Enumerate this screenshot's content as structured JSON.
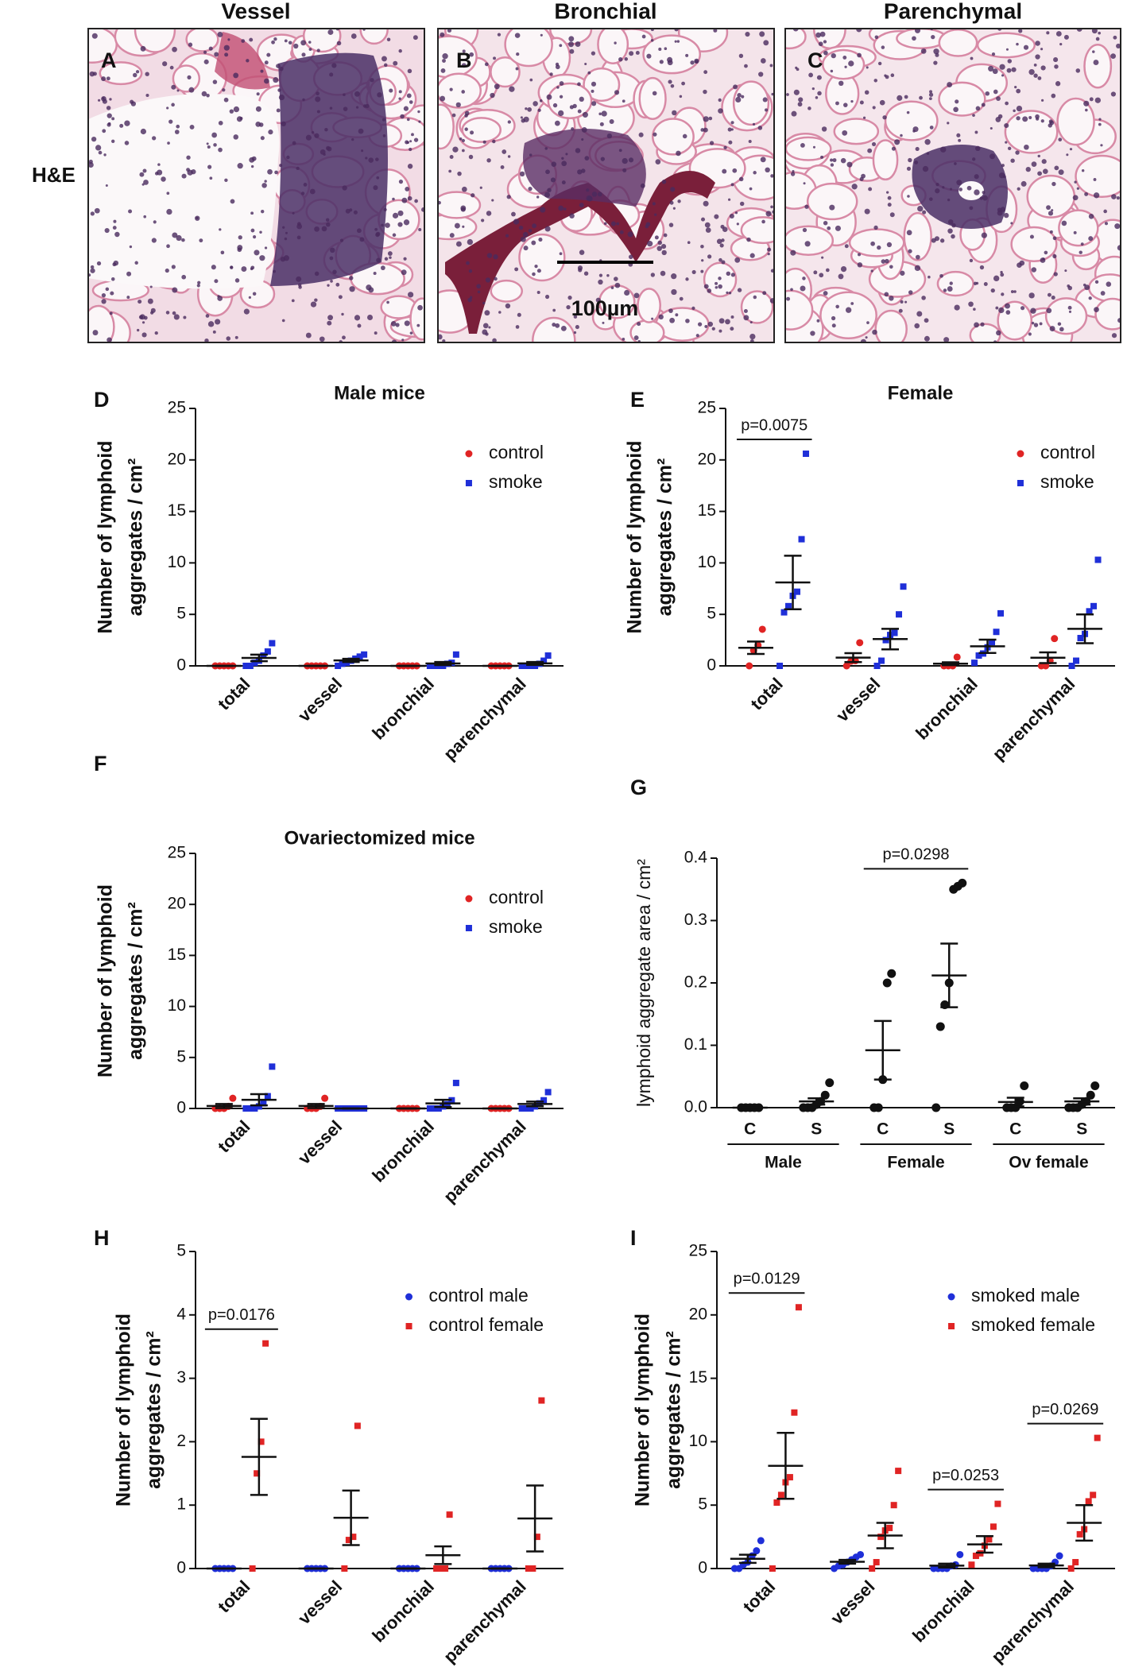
{
  "images": {
    "row_label": "H&E",
    "scale_bar": "100µm",
    "panels": [
      {
        "label": "A",
        "title": "Vessel"
      },
      {
        "label": "B",
        "title": "Bronchial"
      },
      {
        "label": "C",
        "title": "Parenchymal"
      }
    ]
  },
  "chart_data": [
    {
      "type": "strip",
      "label": "D",
      "title": "Male mice",
      "ylabel": [
        "Number of lymphoid",
        "aggregates / cm²"
      ],
      "categories": [
        "total",
        "vessel",
        "bronchial",
        "parenchymal"
      ],
      "ylim": [
        0,
        25
      ],
      "yticks": [
        0,
        5,
        10,
        15,
        20,
        25
      ],
      "legend": "upper right",
      "series": [
        {
          "name": "control",
          "color": "#e02424",
          "marker": "circle",
          "values": [
            [
              0,
              0,
              0,
              0,
              0
            ],
            [
              0,
              0,
              0,
              0,
              0
            ],
            [
              0,
              0,
              0,
              0,
              0
            ],
            [
              0,
              0,
              0,
              0,
              0
            ]
          ],
          "mean": [
            0,
            0,
            0,
            0
          ],
          "sem": [
            0,
            0,
            0,
            0
          ]
        },
        {
          "name": "smoke",
          "color": "#1f2fd8",
          "marker": "square",
          "values": [
            [
              0,
              0,
              0.3,
              0.5,
              1.0,
              1.4,
              2.2
            ],
            [
              0,
              0.2,
              0.3,
              0.5,
              0.7,
              0.9,
              1.1
            ],
            [
              0,
              0,
              0,
              0,
              0.2,
              0.3,
              1.1
            ],
            [
              0,
              0,
              0,
              0,
              0.2,
              0.5,
              1.0
            ]
          ],
          "mean": [
            0.77,
            0.53,
            0.23,
            0.24
          ],
          "sem": [
            0.32,
            0.15,
            0.15,
            0.14
          ]
        }
      ]
    },
    {
      "type": "strip",
      "label": "E",
      "title": "Female",
      "ylabel": [
        "Number of lymphoid",
        "aggregates / cm²"
      ],
      "categories": [
        "total",
        "vessel",
        "bronchial",
        "parenchymal"
      ],
      "ylim": [
        0,
        25
      ],
      "yticks": [
        0,
        5,
        10,
        15,
        20,
        25
      ],
      "legend": "upper right",
      "series": [
        {
          "name": "control",
          "color": "#e02424",
          "marker": "circle",
          "values": [
            [
              0,
              1.5,
              2.0,
              3.55
            ],
            [
              0,
              0.45,
              0.5,
              2.25
            ],
            [
              0,
              0,
              0,
              0.85
            ],
            [
              0,
              0,
              0.5,
              2.65
            ]
          ],
          "mean": [
            1.76,
            0.8,
            0.21,
            0.79
          ],
          "sem": [
            0.6,
            0.43,
            0.14,
            0.52
          ]
        },
        {
          "name": "smoke",
          "color": "#1f2fd8",
          "marker": "square",
          "values": [
            [
              0,
              5.2,
              5.8,
              6.8,
              7.2,
              12.3,
              20.6
            ],
            [
              0,
              0.5,
              2.5,
              3.0,
              3.2,
              5.0,
              7.7
            ],
            [
              0.3,
              1.0,
              1.2,
              1.8,
              2.3,
              3.3,
              5.1
            ],
            [
              0,
              0.5,
              2.7,
              3.1,
              5.3,
              5.8,
              10.3
            ]
          ],
          "mean": [
            8.1,
            2.6,
            1.9,
            3.6
          ],
          "sem": [
            2.6,
            1.0,
            0.65,
            1.4
          ]
        }
      ],
      "annotations": [
        {
          "text": "p=0.0075",
          "categories": [
            0,
            0
          ]
        }
      ]
    },
    {
      "type": "strip",
      "label": "F",
      "title": "Ovariectomized mice",
      "ylabel": [
        "Number of lymphoid",
        "aggregates / cm²"
      ],
      "categories": [
        "total",
        "vessel",
        "bronchial",
        "parenchymal"
      ],
      "ylim": [
        0,
        25
      ],
      "yticks": [
        0,
        5,
        10,
        15,
        20,
        25
      ],
      "legend": "upper right",
      "series": [
        {
          "name": "control",
          "color": "#e02424",
          "marker": "circle",
          "values": [
            [
              0,
              0,
              0,
              0.2,
              1.0
            ],
            [
              0,
              0,
              0,
              0.2,
              1.0
            ],
            [
              0,
              0,
              0,
              0,
              0
            ],
            [
              0,
              0,
              0,
              0,
              0
            ]
          ],
          "mean": [
            0.24,
            0.24,
            0,
            0
          ],
          "sem": [
            0.2,
            0.2,
            0,
            0
          ]
        },
        {
          "name": "smoke",
          "color": "#1f2fd8",
          "marker": "square",
          "values": [
            [
              0,
              0,
              0,
              0.2,
              0.5,
              1.2,
              4.1
            ],
            [
              0,
              0,
              0,
              0,
              0,
              0,
              0
            ],
            [
              0,
              0,
              0,
              0.2,
              0.4,
              0.8,
              2.5
            ],
            [
              0,
              0,
              0,
              0.2,
              0.5,
              0.8,
              1.6
            ]
          ],
          "mean": [
            0.85,
            0,
            0.5,
            0.44
          ],
          "sem": [
            0.55,
            0,
            0.35,
            0.23
          ]
        }
      ]
    },
    {
      "type": "strip",
      "label": "G",
      "ylabel": [
        "lymphoid aggregate area / cm²"
      ],
      "categories": [
        "C",
        "S",
        "C",
        "S",
        "C",
        "S"
      ],
      "groups": [
        "Male",
        "Female",
        "Ov female"
      ],
      "ylim": [
        0,
        0.4
      ],
      "yticks": [
        {
          "value": 0,
          "label": "0.0"
        },
        0.1,
        0.2,
        0.3,
        0.4
      ],
      "series": [
        {
          "color": "#111111",
          "marker": "circle",
          "values": [
            [
              0,
              0,
              0,
              0,
              0
            ],
            [
              0,
              0,
              0,
              0.005,
              0.01,
              0.02,
              0.04
            ],
            [
              0,
              0,
              0.045,
              0.2,
              0.215
            ],
            [
              0,
              0.13,
              0.165,
              0.2,
              0.35,
              0.355,
              0.36
            ],
            [
              0,
              0,
              0,
              0.01,
              0.035
            ],
            [
              0,
              0,
              0,
              0.005,
              0.01,
              0.02,
              0.035
            ]
          ],
          "mean": [
            0,
            0.01,
            0.092,
            0.212,
            0.009,
            0.01
          ],
          "sem": [
            0,
            0.005,
            0.047,
            0.051,
            0.007,
            0.005
          ]
        }
      ],
      "annotations": [
        {
          "text": "p=0.0298",
          "categories": [
            2,
            3
          ]
        }
      ]
    },
    {
      "type": "strip",
      "label": "H",
      "ylabel": [
        "Number of lymphoid",
        "aggregates / cm²"
      ],
      "categories": [
        "total",
        "vessel",
        "bronchial",
        "parenchymal"
      ],
      "ylim": [
        0,
        5
      ],
      "yticks": [
        0,
        1,
        2,
        3,
        4,
        5
      ],
      "legend": "upper right",
      "series": [
        {
          "name": "control male",
          "color": "#1f2fd8",
          "marker": "circle",
          "values": [
            [
              0,
              0,
              0,
              0,
              0
            ],
            [
              0,
              0,
              0,
              0,
              0
            ],
            [
              0,
              0,
              0,
              0,
              0
            ],
            [
              0,
              0,
              0,
              0,
              0
            ]
          ],
          "mean": [
            0,
            0,
            0,
            0
          ],
          "sem": [
            0,
            0,
            0,
            0
          ]
        },
        {
          "name": "control female",
          "color": "#e02424",
          "marker": "square",
          "values": [
            [
              0,
              1.5,
              2.0,
              3.55
            ],
            [
              0,
              0.45,
              0.5,
              2.25
            ],
            [
              0,
              0,
              0,
              0.85
            ],
            [
              0,
              0,
              0.5,
              2.65
            ]
          ],
          "mean": [
            1.76,
            0.8,
            0.21,
            0.79
          ],
          "sem": [
            0.6,
            0.43,
            0.14,
            0.52
          ]
        }
      ],
      "annotations": [
        {
          "text": "p=0.0176",
          "categories": [
            0,
            0
          ]
        }
      ]
    },
    {
      "type": "strip",
      "label": "I",
      "ylabel": [
        "Number of lymphoid",
        "aggregates / cm²"
      ],
      "categories": [
        "total",
        "vessel",
        "bronchial",
        "parenchymal"
      ],
      "ylim": [
        0,
        25
      ],
      "yticks": [
        0,
        5,
        10,
        15,
        20,
        25
      ],
      "legend": "upper right",
      "series": [
        {
          "name": "smoked male",
          "color": "#1f2fd8",
          "marker": "circle",
          "values": [
            [
              0,
              0,
              0.3,
              0.5,
              1.0,
              1.4,
              2.2
            ],
            [
              0,
              0.2,
              0.3,
              0.5,
              0.7,
              0.9,
              1.1
            ],
            [
              0,
              0,
              0,
              0,
              0.2,
              0.3,
              1.1
            ],
            [
              0,
              0,
              0,
              0,
              0.2,
              0.5,
              1.0
            ]
          ],
          "mean": [
            0.77,
            0.53,
            0.23,
            0.24
          ],
          "sem": [
            0.32,
            0.15,
            0.15,
            0.14
          ]
        },
        {
          "name": "smoked female",
          "color": "#e02424",
          "marker": "square",
          "values": [
            [
              0,
              5.2,
              5.8,
              6.8,
              7.2,
              12.3,
              20.6
            ],
            [
              0,
              0.5,
              2.5,
              3.0,
              3.2,
              5.0,
              7.7
            ],
            [
              0.3,
              1.0,
              1.2,
              1.8,
              2.3,
              3.3,
              5.1
            ],
            [
              0,
              0.5,
              2.7,
              3.1,
              5.3,
              5.8,
              10.3
            ]
          ],
          "mean": [
            8.1,
            2.6,
            1.9,
            3.6
          ],
          "sem": [
            2.6,
            1.0,
            0.65,
            1.4
          ]
        }
      ],
      "annotations": [
        {
          "text": "p=0.0129",
          "categories": [
            0,
            0
          ]
        },
        {
          "text": "p=0.0253",
          "categories": [
            2,
            2
          ]
        },
        {
          "text": "p=0.0269",
          "categories": [
            3,
            3
          ]
        }
      ]
    }
  ]
}
